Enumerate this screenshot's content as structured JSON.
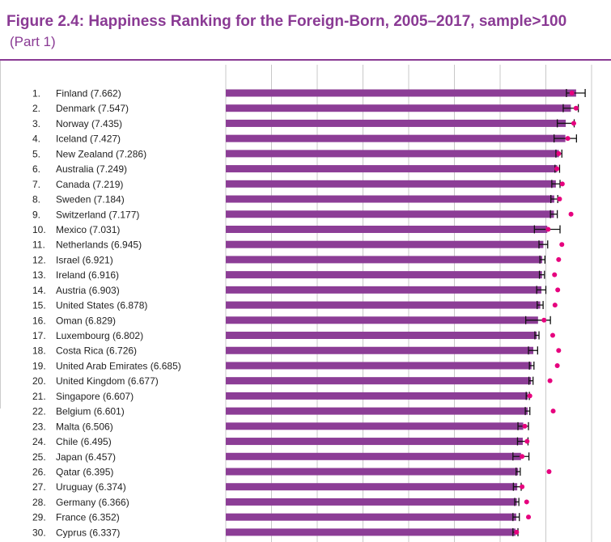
{
  "header": {
    "title": "Figure 2.4: Happiness Ranking for the Foreign-Born, 2005–2017, sample>100",
    "subtitle": "(Part 1)"
  },
  "colors": {
    "bar": "#8c3d96",
    "grid": "#c8c8c8",
    "dot": "#e6007e",
    "whisker": "#111111",
    "title": "#8a3a94"
  },
  "chart_data": {
    "type": "bar",
    "orientation": "horizontal",
    "categories": [
      "Finland",
      "Denmark",
      "Norway",
      "Iceland",
      "New Zealand",
      "Australia",
      "Canada",
      "Sweden",
      "Switzerland",
      "Mexico",
      "Netherlands",
      "Israel",
      "Ireland",
      "Austria",
      "United States",
      "Oman",
      "Luxembourg",
      "Costa Rica",
      "United Arab Emirates",
      "United Kingdom",
      "Singapore",
      "Belgium",
      "Malta",
      "Chile",
      "Japan",
      "Qatar",
      "Uruguay",
      "Germany",
      "France",
      "Cyprus"
    ],
    "row_labels": [
      "1.",
      "2.",
      "3.",
      "4.",
      "5.",
      "6.",
      "7.",
      "8.",
      "9.",
      "10.",
      "11.",
      "12.",
      "13.",
      "14.",
      "15.",
      "16.",
      "17.",
      "18.",
      "19.",
      "20.",
      "21.",
      "22.",
      "23.",
      "24.",
      "25.",
      "26.",
      "27.",
      "28.",
      "29.",
      "30."
    ],
    "label_values": [
      "7.662",
      "7.547",
      "7.435",
      "7.427",
      "7.286",
      "7.249",
      "7.219",
      "7.184",
      "7.177",
      "7.031",
      "6.945",
      "6.921",
      "6.916",
      "6.903",
      "6.878",
      "6.829",
      "6.802",
      "6.726",
      "6.685",
      "6.677",
      "6.607",
      "6.601",
      "6.506",
      "6.495",
      "6.457",
      "6.395",
      "6.374",
      "6.366",
      "6.352",
      "6.337"
    ],
    "values": [
      7.662,
      7.547,
      7.435,
      7.427,
      7.286,
      7.249,
      7.219,
      7.184,
      7.177,
      7.031,
      6.945,
      6.921,
      6.916,
      6.903,
      6.878,
      6.829,
      6.802,
      6.726,
      6.685,
      6.677,
      6.607,
      6.601,
      6.506,
      6.495,
      6.457,
      6.395,
      6.374,
      6.366,
      6.352,
      6.337
    ],
    "ci_low": [
      7.45,
      7.38,
      7.25,
      7.18,
      7.22,
      7.2,
      7.13,
      7.11,
      7.1,
      6.75,
      6.85,
      6.87,
      6.86,
      6.8,
      6.81,
      6.56,
      6.76,
      6.62,
      6.64,
      6.63,
      6.57,
      6.55,
      6.39,
      6.38,
      6.28,
      6.35,
      6.29,
      6.32,
      6.28,
      6.28
    ],
    "ci_high": [
      7.86,
      7.71,
      7.62,
      7.67,
      7.35,
      7.3,
      7.31,
      7.26,
      7.25,
      7.31,
      7.04,
      6.98,
      6.97,
      7.0,
      6.94,
      7.1,
      6.85,
      6.82,
      6.74,
      6.72,
      6.64,
      6.65,
      6.62,
      6.61,
      6.63,
      6.44,
      6.46,
      6.41,
      6.42,
      6.39
    ],
    "dots": [
      7.57,
      7.66,
      7.61,
      7.48,
      7.28,
      7.24,
      7.36,
      7.3,
      7.55,
      7.05,
      7.35,
      7.28,
      7.19,
      7.26,
      7.2,
      6.96,
      7.15,
      7.28,
      7.25,
      7.09,
      6.65,
      7.16,
      6.54,
      6.59,
      6.48,
      7.07,
      6.48,
      6.58,
      6.62,
      6.36
    ],
    "xlim": [
      0,
      8
    ],
    "grid": true
  }
}
